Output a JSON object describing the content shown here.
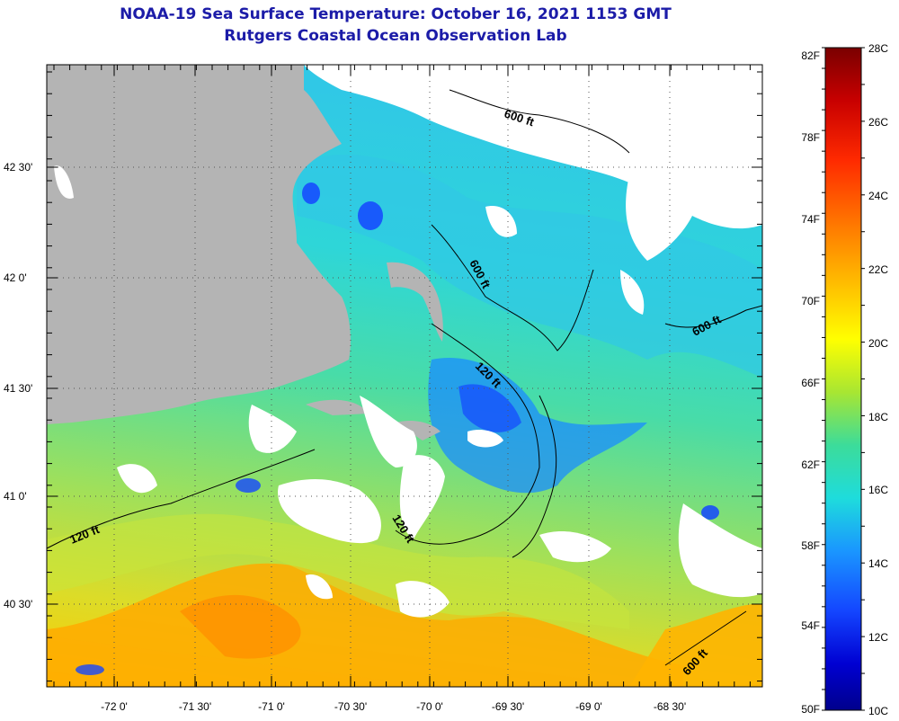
{
  "header": {
    "title": "NOAA-19 Sea Surface Temperature:  October 16, 2021 1153 GMT",
    "subtitle": "Rutgers Coastal Ocean Observation Lab"
  },
  "map": {
    "longitude_ticks": [
      "-72 0'",
      "-71 30'",
      "-71 0'",
      "-70 30'",
      "-70 0'",
      "-69 30'",
      "-69 0'",
      "-68 30'"
    ],
    "latitude_ticks": [
      "42 30'",
      "42 0'",
      "41 30'",
      "41 0'",
      "40 30'"
    ],
    "contour_labels": [
      "600 ft",
      "600 ft",
      "600 ft",
      "600 ft",
      "120 ft",
      "120 ft",
      "120 ft"
    ],
    "colors": {
      "land": "#b4b4b4",
      "cloud": "#ffffff"
    }
  },
  "colorbar": {
    "fahrenheit_labels": [
      "82F",
      "78F",
      "74F",
      "70F",
      "66F",
      "62F",
      "58F",
      "54F",
      "50F"
    ],
    "celsius_labels": [
      "28C",
      "26C",
      "24C",
      "22C",
      "20C",
      "18C",
      "16C",
      "14C",
      "12C",
      "10C"
    ],
    "gradient_stops": [
      "#7a0000",
      "#c80000",
      "#ff2a00",
      "#ff7a00",
      "#ffc800",
      "#ffff00",
      "#a8e632",
      "#3cdc9a",
      "#1edcdc",
      "#1a96ff",
      "#1446ff",
      "#0000d2",
      "#00008c"
    ]
  }
}
